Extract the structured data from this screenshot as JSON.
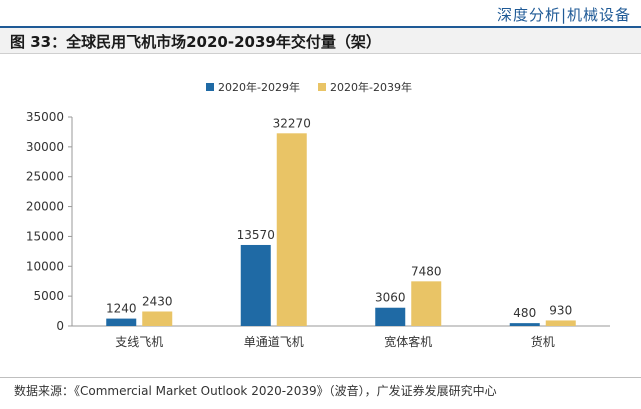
{
  "header": {
    "tag": "深度分析|机械设备"
  },
  "figure": {
    "title": "图 33：全球民用飞机市场2020-2039年交付量（架）"
  },
  "source": {
    "text": "数据来源：《Commercial Market Outlook 2020-2039》（波音），广发证券发展研究中心"
  },
  "colors": {
    "series1": "#1f6aa5",
    "series2": "#e9c466",
    "axis": "#999999"
  },
  "chart_data": {
    "type": "bar",
    "title": "",
    "xlabel": "",
    "ylabel": "",
    "categories": [
      "支线飞机",
      "单通道飞机",
      "宽体客机",
      "货机"
    ],
    "series": [
      {
        "name": "2020年-2029年",
        "values": [
          1240,
          13570,
          3060,
          480
        ]
      },
      {
        "name": "2020年-2039年",
        "values": [
          2430,
          32270,
          7480,
          930
        ]
      }
    ],
    "ylim": [
      0,
      35000
    ],
    "yticks": [
      0,
      5000,
      10000,
      15000,
      20000,
      25000,
      30000,
      35000
    ],
    "grid": false,
    "legend": "top-center"
  }
}
